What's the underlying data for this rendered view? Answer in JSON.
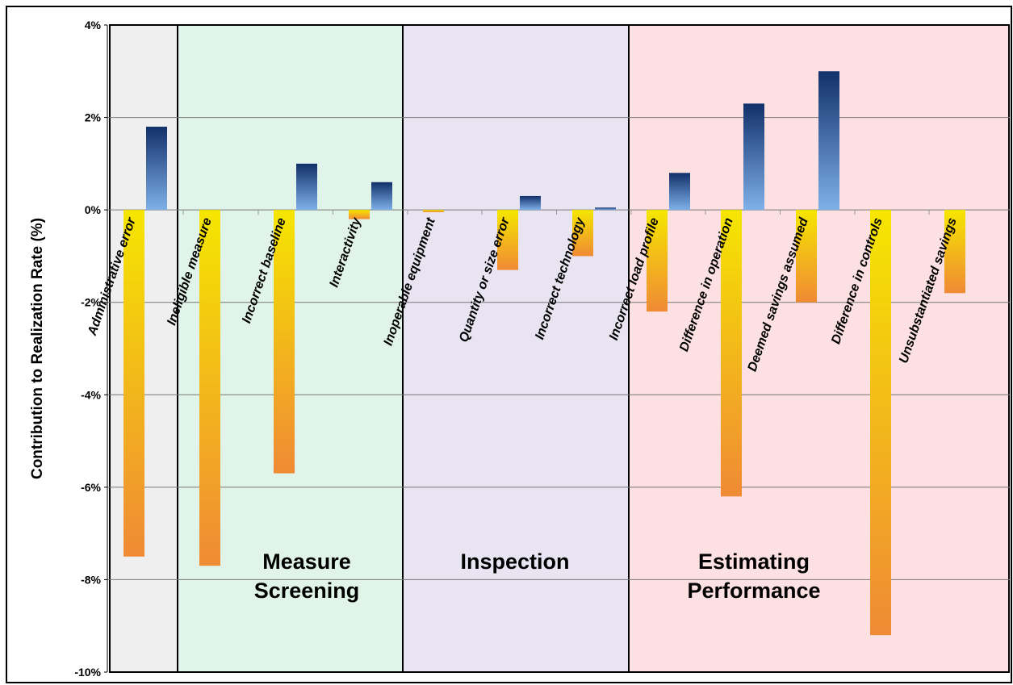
{
  "chart_data": {
    "type": "bar",
    "title": "",
    "xlabel": "",
    "ylabel": "Contribution to Realization Rate (%)",
    "ylim": [
      -10,
      4
    ],
    "y_ticks": [
      4,
      2,
      0,
      -2,
      -4,
      -6,
      -8,
      -10
    ],
    "y_tick_labels": [
      "4%",
      "2%",
      "0%",
      "-2%",
      "-4%",
      "-6%",
      "-8%",
      "-10%"
    ],
    "grid": true,
    "legend": "none",
    "categories": [
      "Administrative error",
      "Ineligible measure",
      "Incorrect baseline",
      "Interactivity",
      "Inoperable equipment",
      "Quantity or size error",
      "Incorrect technology",
      "Incorrect load profile",
      "Difference in operation",
      "Deemed savings assumed",
      "Difference in controls",
      "Unsubstantiated savings"
    ],
    "series": [
      {
        "color_top": "#f5e600",
        "color_bottom": "#f08a35",
        "values": [
          -7.5,
          -7.7,
          -5.7,
          -0.2,
          -0.05,
          -1.3,
          -1.0,
          -2.2,
          -6.2,
          -2.0,
          -9.2,
          -1.8
        ]
      },
      {
        "color_top": "#12306a",
        "color_bottom": "#7fb0e8",
        "values": [
          1.8,
          0.0,
          1.0,
          0.6,
          0.0,
          0.3,
          0.05,
          0.8,
          2.3,
          3.0,
          0.0,
          0.0
        ]
      }
    ],
    "regions": [
      {
        "label": "",
        "start": 0,
        "end": 0,
        "color": "#efefef"
      },
      {
        "label": "Measure\nScreening",
        "start": 1,
        "end": 3,
        "color": "#e0f4ea"
      },
      {
        "label": "Inspection",
        "start": 4,
        "end": 6,
        "color": "#e9e4f2"
      },
      {
        "label": "Estimating\nPerformance",
        "start": 7,
        "end": 11,
        "color": "#fde0e2"
      }
    ]
  }
}
